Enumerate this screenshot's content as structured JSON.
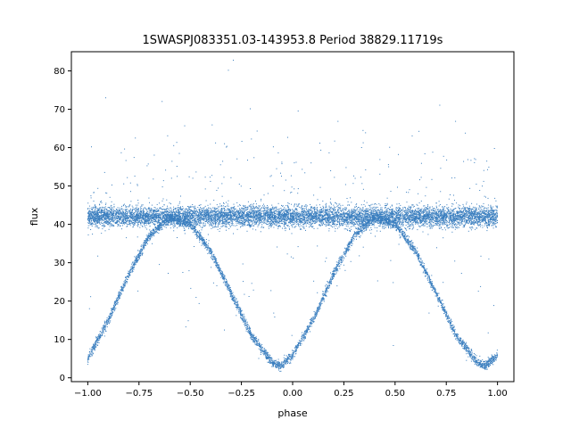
{
  "chart_data": {
    "type": "scatter",
    "title": "1SWASPJ083351.03-143953.8 Period 38829.11719s",
    "xlabel": "phase",
    "ylabel": "flux",
    "xlim": [
      -1.08,
      1.08
    ],
    "ylim": [
      -1,
      85
    ],
    "xticks": [
      -1.0,
      -0.75,
      -0.5,
      -0.25,
      0.0,
      0.25,
      0.5,
      0.75,
      1.0
    ],
    "xtick_labels": [
      "−1.00",
      "−0.75",
      "−0.50",
      "−0.25",
      "0.00",
      "0.25",
      "0.50",
      "0.75",
      "1.00"
    ],
    "yticks": [
      0,
      10,
      20,
      30,
      40,
      50,
      60,
      70,
      80
    ],
    "ytick_labels": [
      "0",
      "10",
      "20",
      "30",
      "40",
      "50",
      "60",
      "70",
      "80"
    ],
    "grid": false,
    "marker_color": "#3a7ebf",
    "series": [
      {
        "values_description_points": {
          "baseline_band": {
            "x_range": [
              -1.0,
              1.0
            ],
            "y_center": 42,
            "y_spread": 6
          },
          "eclipse_curve": [
            {
              "x": -1.0,
              "y": 5
            },
            {
              "x": -0.9,
              "y": 15
            },
            {
              "x": -0.8,
              "y": 27
            },
            {
              "x": -0.7,
              "y": 37
            },
            {
              "x": -0.6,
              "y": 42
            },
            {
              "x": -0.5,
              "y": 40
            },
            {
              "x": -0.4,
              "y": 33
            },
            {
              "x": -0.3,
              "y": 22
            },
            {
              "x": -0.2,
              "y": 11
            },
            {
              "x": -0.1,
              "y": 4
            },
            {
              "x": -0.06,
              "y": 3
            },
            {
              "x": 0.0,
              "y": 6
            },
            {
              "x": 0.1,
              "y": 15
            },
            {
              "x": 0.2,
              "y": 27
            },
            {
              "x": 0.3,
              "y": 37
            },
            {
              "x": 0.4,
              "y": 42
            },
            {
              "x": 0.5,
              "y": 40
            },
            {
              "x": 0.6,
              "y": 33
            },
            {
              "x": 0.7,
              "y": 22
            },
            {
              "x": 0.8,
              "y": 11
            },
            {
              "x": 0.9,
              "y": 4
            },
            {
              "x": 0.94,
              "y": 3
            },
            {
              "x": 1.0,
              "y": 6
            }
          ]
        }
      }
    ]
  }
}
